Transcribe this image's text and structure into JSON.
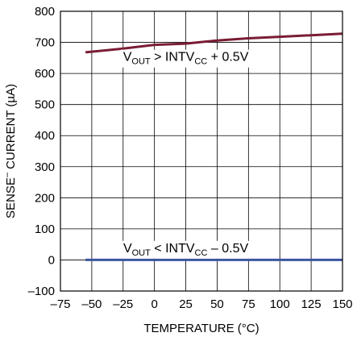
{
  "chart_data": {
    "type": "line",
    "xlabel": "TEMPERATURE (°C)",
    "ylabel": {
      "pre": "SENSE",
      "sup": "–",
      "post": " CURRENT (µA)"
    },
    "xlim": [
      -75,
      150
    ],
    "ylim": [
      -100,
      800
    ],
    "xticks": [
      -75,
      -50,
      -25,
      0,
      25,
      50,
      75,
      100,
      125,
      150
    ],
    "yticks": [
      -100,
      0,
      100,
      200,
      300,
      400,
      500,
      600,
      700,
      800
    ],
    "xtick_labels": [
      "–75",
      "–50",
      "–25",
      "0",
      "25",
      "50",
      "75",
      "100",
      "125",
      "150"
    ],
    "ytick_labels": [
      "–100",
      "0",
      "100",
      "200",
      "300",
      "400",
      "500",
      "600",
      "700",
      "800"
    ],
    "grid": true,
    "series": [
      {
        "x": [
          -55,
          -25,
          0,
          25,
          50,
          75,
          100,
          125,
          150
        ],
        "y": [
          668,
          680,
          692,
          696,
          706,
          713,
          718,
          723,
          728
        ],
        "color": "#7a1d33"
      },
      {
        "x": [
          -55,
          0,
          50,
          100,
          150
        ],
        "y": [
          0,
          0,
          0,
          0,
          0
        ],
        "color": "#3a55a0"
      }
    ],
    "annotations": [
      {
        "parts": [
          "V",
          "OUT",
          " > INTV",
          "CC",
          " + 0.5V"
        ],
        "x": 25,
        "y": 640
      },
      {
        "parts": [
          "V",
          "OUT",
          " < INTV",
          "CC",
          " – 0.5V"
        ],
        "x": 25,
        "y": 25
      }
    ]
  }
}
